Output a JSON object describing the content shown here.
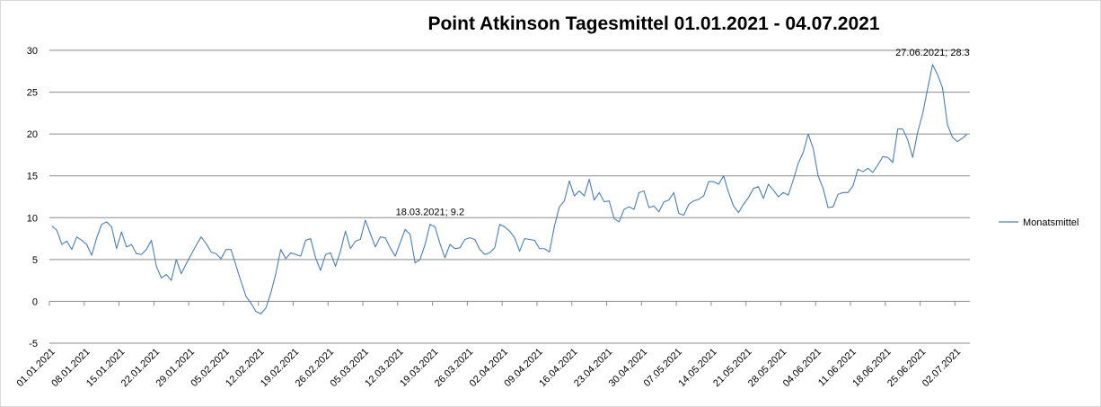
{
  "chart_data": {
    "type": "line",
    "title": "Point Atkinson Tagesmittel 01.01.2021  - 04.07.2021",
    "xlabel": "",
    "ylabel": "",
    "ylim": [
      -5,
      30
    ],
    "yticks": [
      "-5",
      "0",
      "5",
      "10",
      "15",
      "20",
      "25",
      "30"
    ],
    "grid": true,
    "legend_position": "right",
    "series_color": "#4a7ebb",
    "x_tick_labels": [
      "01.01.2021",
      "08.01.2021",
      "15.01.2021",
      "22.01.2021",
      "29.01.2021",
      "05.02.2021",
      "12.02.2021",
      "19.02.2021",
      "26.02.2021",
      "05.03.2021",
      "12.03.2021",
      "19.03.2021",
      "26.03.2021",
      "02.04.2021",
      "09.04.2021",
      "16.04.2021",
      "23.04.2021",
      "30.04.2021",
      "07.05.2021",
      "14.05.2021",
      "21.05.2021",
      "28.05.2021",
      "04.06.2021",
      "11.06.2021",
      "18.06.2021",
      "25.06.2021",
      "02.07.2021"
    ],
    "series": [
      {
        "name": "Monatsmittel",
        "start_date": "01.01.2021",
        "end_date": "04.07.2021",
        "values": [
          9.0,
          8.5,
          6.8,
          7.2,
          6.2,
          7.7,
          7.3,
          6.8,
          5.5,
          7.6,
          9.2,
          9.5,
          8.9,
          6.3,
          8.3,
          6.5,
          6.8,
          5.7,
          5.6,
          6.2,
          7.3,
          4.2,
          2.8,
          3.2,
          2.5,
          5.0,
          3.3,
          4.5,
          5.6,
          6.7,
          7.7,
          6.9,
          5.9,
          5.7,
          5.1,
          6.2,
          6.2,
          4.3,
          2.4,
          0.6,
          -0.2,
          -1.2,
          -1.5,
          -0.8,
          1.0,
          3.3,
          6.2,
          5.1,
          5.8,
          5.6,
          5.4,
          7.3,
          7.5,
          5.2,
          3.7,
          5.6,
          5.8,
          4.2,
          6.0,
          8.4,
          6.3,
          7.2,
          7.4,
          9.7,
          8.1,
          6.5,
          7.7,
          7.6,
          6.4,
          5.4,
          7.0,
          8.6,
          8.0,
          4.6,
          5.0,
          6.8,
          9.2,
          8.9,
          6.9,
          5.2,
          6.8,
          6.3,
          6.4,
          7.4,
          7.6,
          7.4,
          6.2,
          5.6,
          5.8,
          6.4,
          9.2,
          8.9,
          8.4,
          7.6,
          6.0,
          7.5,
          7.4,
          7.3,
          6.3,
          6.3,
          5.9,
          9.0,
          11.3,
          12.0,
          14.4,
          12.6,
          13.2,
          12.6,
          14.6,
          12.1,
          13.0,
          11.9,
          12.0,
          9.9,
          9.5,
          11.0,
          11.3,
          11.0,
          13.0,
          13.2,
          11.2,
          11.4,
          10.7,
          11.9,
          12.1,
          13.0,
          10.5,
          10.3,
          11.6,
          12.0,
          12.2,
          12.6,
          14.3,
          14.3,
          14.0,
          15.0,
          13.0,
          11.4,
          10.6,
          11.6,
          12.4,
          13.5,
          13.7,
          12.3,
          14.0,
          13.3,
          12.5,
          13.0,
          12.7,
          14.5,
          16.5,
          17.8,
          20.0,
          18.3,
          15.0,
          13.5,
          11.2,
          11.3,
          12.8,
          13.0,
          13.0,
          13.8,
          15.8,
          15.5,
          15.9,
          15.4,
          16.3,
          17.3,
          17.2,
          16.6,
          20.6,
          20.6,
          19.3,
          17.2,
          20.2,
          22.4,
          25.4,
          28.3,
          27.1,
          25.5,
          21.1,
          19.6,
          19.1,
          19.5,
          20.0
        ]
      }
    ],
    "annotations": [
      {
        "date": "18.03.2021",
        "value": 9.2,
        "text": "18.03.2021; 9.2"
      },
      {
        "date": "27.06.2021",
        "value": 28.3,
        "text": "27.06.2021; 28.3"
      }
    ]
  }
}
